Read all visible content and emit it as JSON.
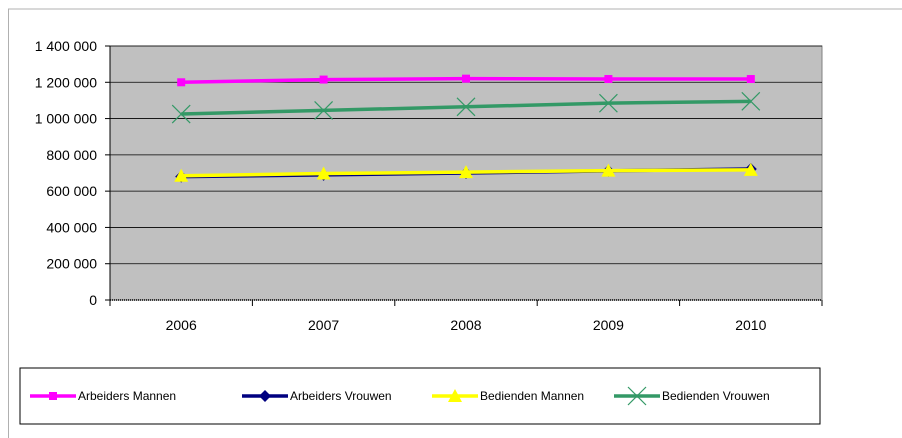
{
  "chart_data": {
    "type": "line",
    "title": "",
    "xlabel": "",
    "ylabel": "",
    "categories": [
      "2006",
      "2007",
      "2008",
      "2009",
      "2010"
    ],
    "ylim": [
      0,
      1400000
    ],
    "yticks": [
      0,
      200000,
      400000,
      600000,
      800000,
      1000000,
      1200000,
      1400000
    ],
    "ytick_labels": [
      "0",
      "200 000",
      "400 000",
      "600 000",
      "800 000",
      "1 000 000",
      "1 200 000",
      "1 400 000"
    ],
    "plot_background": "#c0c0c0",
    "grid": "horizontal",
    "legend_position": "bottom",
    "series": [
      {
        "name": "Arbeiders Mannen",
        "values": [
          1200000,
          1215000,
          1220000,
          1218000,
          1218000
        ],
        "color": "#ff00ff",
        "marker": "square"
      },
      {
        "name": "Arbeiders Vrouwen",
        "values": [
          680000,
          690000,
          700000,
          712000,
          722000
        ],
        "color": "#000080",
        "marker": "diamond"
      },
      {
        "name": "Bedienden Mannen",
        "values": [
          685000,
          697000,
          705000,
          713000,
          717000
        ],
        "color": "#ffff00",
        "marker": "triangle"
      },
      {
        "name": "Bedienden Vrouwen",
        "values": [
          1025000,
          1045000,
          1065000,
          1085000,
          1095000
        ],
        "color": "#339966",
        "marker": "x"
      }
    ]
  }
}
